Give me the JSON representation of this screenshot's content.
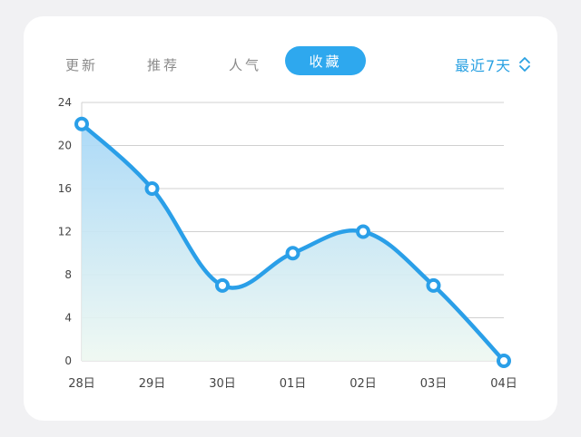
{
  "tabs": [
    {
      "label": "更新",
      "active": false
    },
    {
      "label": "推荐",
      "active": false
    },
    {
      "label": "人气",
      "active": false
    },
    {
      "label": "收藏",
      "active": true
    }
  ],
  "range_selector": {
    "label": "最近7天",
    "icon": "chevron-up-down-icon"
  },
  "colors": {
    "accent": "#2ea8ee",
    "line": "#2a9fe8",
    "grid": "#d0d0d0",
    "axis_text": "#444444"
  },
  "chart_data": {
    "type": "area",
    "categories": [
      "28日",
      "29日",
      "30日",
      "01日",
      "02日",
      "03日",
      "04日"
    ],
    "values": [
      22,
      16,
      7,
      10,
      12,
      7,
      0
    ],
    "ylim": [
      0,
      24
    ],
    "yticks": [
      "0",
      "4",
      "8",
      "12",
      "16",
      "20",
      "24"
    ],
    "grid": true,
    "title": "",
    "xlabel": "",
    "ylabel": ""
  }
}
